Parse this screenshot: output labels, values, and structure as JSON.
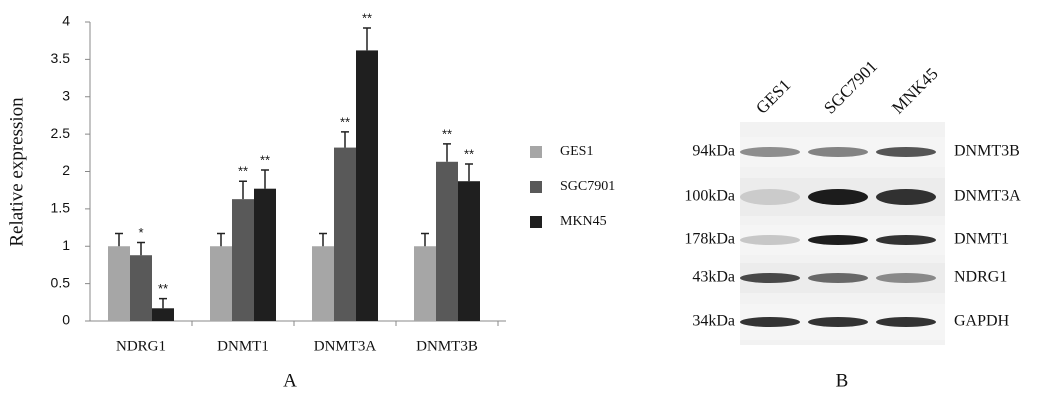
{
  "chart_data": {
    "type": "bar",
    "y_label": "Relative expression",
    "categories": [
      "NDRG1",
      "DNMT1",
      "DNMT3A",
      "DNMT3B"
    ],
    "series": [
      {
        "name": "GES1",
        "color": "#a6a6a6",
        "values": [
          1.0,
          1.0,
          1.0,
          1.0
        ],
        "errors": [
          0.17,
          0.17,
          0.17,
          0.17
        ],
        "significance": [
          null,
          null,
          null,
          null
        ]
      },
      {
        "name": "SGC7901",
        "color": "#595959",
        "values": [
          0.88,
          1.63,
          2.32,
          2.13
        ],
        "errors": [
          0.17,
          0.24,
          0.21,
          0.24
        ],
        "significance": [
          "*",
          "**",
          "**",
          "**"
        ]
      },
      {
        "name": "MKN45",
        "color": "#1f1f1f",
        "values": [
          0.17,
          1.77,
          3.62,
          1.87
        ],
        "errors": [
          0.13,
          0.25,
          0.3,
          0.23
        ],
        "significance": [
          "**",
          "**",
          "**",
          "**"
        ]
      }
    ],
    "ylim": [
      0,
      4
    ],
    "yticks": [
      0,
      0.5,
      1,
      1.5,
      2,
      2.5,
      3,
      3.5,
      4
    ],
    "grid": false,
    "legend": "right"
  },
  "blot": {
    "lanes": [
      "GES1",
      "SGC7901",
      "MNK45"
    ],
    "rows": [
      {
        "size": "94kDa",
        "protein": "DNMT3B"
      },
      {
        "size": "100kDa",
        "protein": "DNMT3A"
      },
      {
        "size": "178kDa",
        "protein": "DNMT1"
      },
      {
        "size": "43kDa",
        "protein": "NDRG1"
      },
      {
        "size": "34kDa",
        "protein": "GAPDH"
      }
    ]
  },
  "panel_labels": [
    "A",
    "B"
  ]
}
